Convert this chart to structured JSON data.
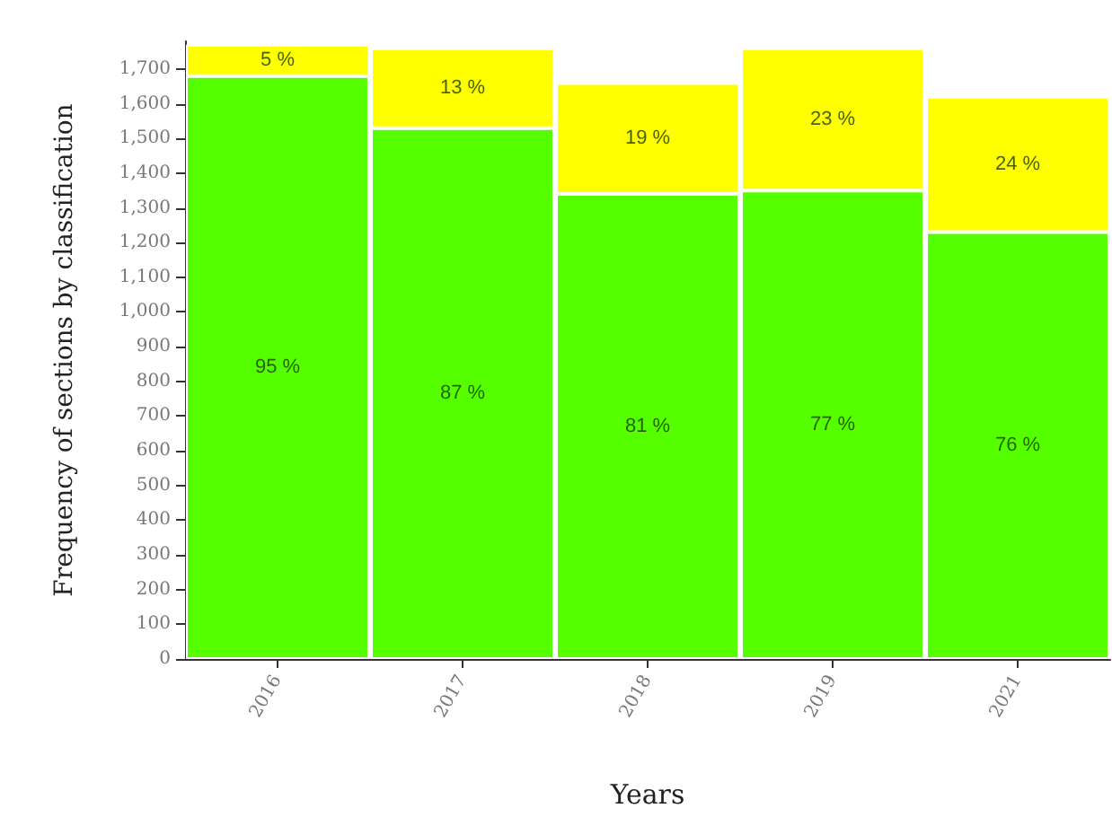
{
  "chart_data": {
    "type": "bar",
    "stacked": true,
    "xlabel": "Years",
    "ylabel": "Frequency of sections by classification",
    "categories": [
      "2016",
      "2017",
      "2018",
      "2019",
      "2021"
    ],
    "series": [
      {
        "color": "#55ff00",
        "values": [
          1680,
          1530,
          1340,
          1350,
          1230
        ]
      },
      {
        "color": "#ffff00",
        "values": [
          90,
          230,
          320,
          410,
          390
        ]
      }
    ],
    "annotations": [
      "95 %",
      "87 %",
      "81 %",
      "77 %",
      "76 %",
      "5 %",
      "13 %",
      "19 %",
      "23 %",
      "24 %"
    ],
    "ylim": [
      0,
      1780
    ],
    "yticks": [
      0,
      100,
      200,
      300,
      400,
      500,
      600,
      700,
      800,
      900,
      {
        "value": 1000,
        "label": "1,000"
      },
      {
        "value": 1100,
        "label": "1,100"
      },
      {
        "value": 1200,
        "label": "1,200"
      },
      {
        "value": 1300,
        "label": "1,300"
      },
      {
        "value": 1400,
        "label": "1,400"
      },
      {
        "value": 1500,
        "label": "1,500"
      },
      {
        "value": 1600,
        "label": "1,600"
      },
      {
        "value": 1700,
        "label": "1,700"
      }
    ],
    "grid": false
  }
}
